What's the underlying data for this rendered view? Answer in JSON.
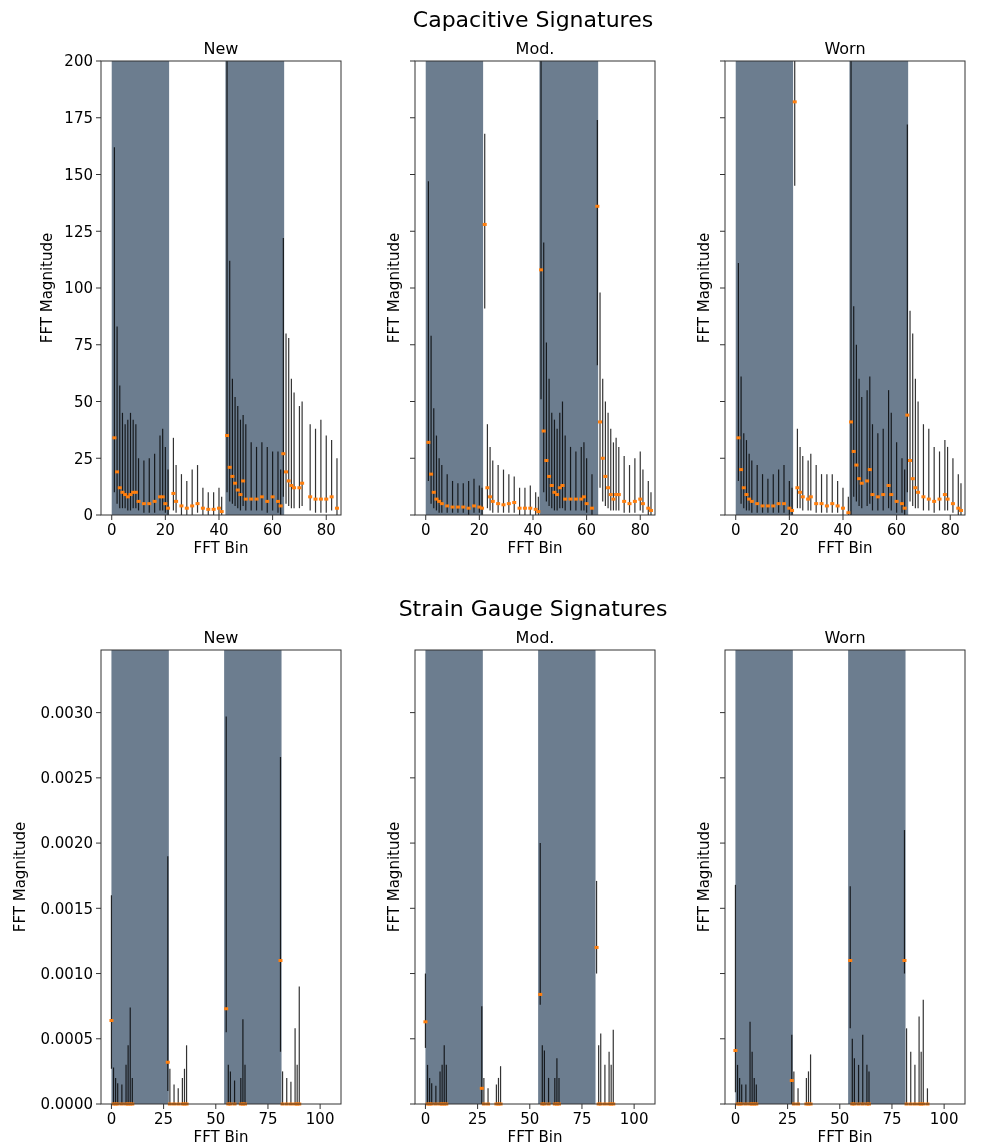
{
  "chart_data": [
    {
      "type": "scatter",
      "title": "New",
      "annotations": [
        "Capacitive Signatures"
      ],
      "xlabel": "FFT Bin",
      "ylabel": "FFT Magnitude",
      "xlim": [
        -4,
        85.5
      ],
      "ylim": [
        0,
        200
      ],
      "xticks": [
        0,
        20,
        40,
        60,
        80
      ],
      "yticks": [
        0,
        25,
        50,
        75,
        100,
        125,
        150,
        175,
        200
      ],
      "marker": "square",
      "bands": [
        {
          "axis": "x",
          "from": 0,
          "to": 21.4,
          "color": "#6c7d8f"
        },
        {
          "axis": "x",
          "from": 42.4,
          "to": 64.3,
          "color": "#6c7d8f"
        }
      ],
      "series": [
        {
          "color": "#ff7f0e",
          "x": [
            1,
            2,
            3,
            4,
            5,
            6,
            7,
            8,
            9,
            10,
            12,
            14,
            16,
            18,
            19,
            20,
            21,
            23,
            24,
            26,
            28,
            30,
            32,
            34,
            36,
            38,
            40,
            41,
            43,
            44,
            45,
            46,
            47,
            48,
            49,
            50,
            52,
            54,
            56,
            58,
            60,
            62,
            63,
            64,
            65,
            66,
            67,
            68,
            70,
            71,
            74,
            76,
            78,
            80,
            82,
            84
          ],
          "values": [
            34,
            19,
            12,
            10,
            9,
            8,
            9,
            10,
            10,
            6,
            5,
            5,
            6,
            8,
            8,
            5,
            3,
            9.5,
            6,
            4,
            3,
            4,
            5,
            3,
            2.5,
            2.5,
            3,
            1.5,
            35,
            21,
            17,
            14,
            11,
            9,
            15,
            7,
            7,
            7,
            8,
            6,
            8,
            6,
            4,
            27,
            19,
            15,
            13,
            12,
            12,
            14,
            8,
            7,
            7,
            7,
            8,
            3
          ],
          "errors": [
            [
              10,
              162
            ],
            [
              5,
              83
            ],
            [
              3,
              57
            ],
            [
              3,
              45
            ],
            [
              3,
              40
            ],
            [
              2,
              42
            ],
            [
              2,
              45
            ],
            [
              3,
              42
            ],
            [
              3,
              40
            ],
            [
              2,
              25
            ],
            [
              1,
              24
            ],
            [
              1,
              25
            ],
            [
              1,
              27
            ],
            [
              2,
              35
            ],
            [
              2,
              38
            ],
            [
              1,
              30
            ],
            [
              0,
              20
            ],
            [
              2,
              34
            ],
            [
              1,
              22
            ],
            [
              0,
              18
            ],
            [
              0,
              15
            ],
            [
              0,
              20
            ],
            [
              1,
              22
            ],
            [
              0,
              12
            ],
            [
              0,
              10
            ],
            [
              0,
              10
            ],
            [
              0,
              12
            ],
            [
              0,
              8
            ],
            [
              10,
              200
            ],
            [
              6,
              112
            ],
            [
              5,
              60
            ],
            [
              4,
              52
            ],
            [
              3,
              48
            ],
            [
              2,
              42
            ],
            [
              4,
              44
            ],
            [
              2,
              40
            ],
            [
              2,
              32
            ],
            [
              2,
              30
            ],
            [
              2,
              32
            ],
            [
              1,
              30
            ],
            [
              2,
              28
            ],
            [
              1,
              28
            ],
            [
              0,
              20
            ],
            [
              8,
              122
            ],
            [
              5,
              80
            ],
            [
              4,
              78
            ],
            [
              3,
              60
            ],
            [
              3,
              54
            ],
            [
              3,
              48
            ],
            [
              4,
              50
            ],
            [
              2,
              40
            ],
            [
              1,
              38
            ],
            [
              1,
              42
            ],
            [
              1,
              35
            ],
            [
              2,
              33
            ],
            [
              0,
              25
            ]
          ]
        }
      ]
    },
    {
      "type": "scatter",
      "title": "Mod.",
      "xlabel": "FFT Bin",
      "ylabel": "FFT Magnitude",
      "xlim": [
        -4,
        85.5
      ],
      "ylim": [
        0,
        200
      ],
      "xticks": [
        0,
        20,
        40,
        60,
        80
      ],
      "yticks": [
        0,
        25,
        50,
        75,
        100,
        125,
        150,
        175,
        200
      ],
      "tick_labels": "x",
      "marker": "square",
      "bands": [
        {
          "axis": "x",
          "from": 0,
          "to": 21.4,
          "color": "#6c7d8f"
        },
        {
          "axis": "x",
          "from": 42.4,
          "to": 64.3,
          "color": "#6c7d8f"
        }
      ],
      "series": [
        {
          "color": "#ff7f0e",
          "x": [
            1,
            2,
            3,
            4,
            5,
            6,
            8,
            10,
            12,
            14,
            16,
            18,
            20,
            21,
            22,
            23,
            24,
            25,
            27,
            29,
            31,
            33,
            35,
            37,
            39,
            41,
            42,
            43,
            44,
            45,
            46,
            47,
            48,
            49,
            50,
            51,
            52,
            54,
            56,
            58,
            59,
            60,
            62,
            64,
            65,
            66,
            67,
            68,
            69,
            70,
            71,
            72,
            74,
            76,
            78,
            80,
            81,
            83,
            84
          ],
          "values": [
            32,
            18,
            10,
            7,
            6,
            5,
            4,
            3.5,
            3.5,
            3.5,
            3,
            4,
            3.5,
            3,
            128,
            12,
            8,
            6,
            5,
            4.5,
            5,
            5.5,
            3,
            3,
            3,
            2.5,
            1.5,
            108,
            37,
            24,
            17,
            13,
            10,
            9,
            12,
            13,
            7,
            7,
            7,
            7,
            8,
            5,
            3,
            136,
            41,
            25,
            17,
            12,
            9,
            7,
            9,
            9,
            6,
            5,
            6,
            7,
            5,
            3,
            2
          ],
          "errors": [
            [
              15,
              147
            ],
            [
              5,
              79
            ],
            [
              3,
              47
            ],
            [
              2,
              35
            ],
            [
              1,
              25
            ],
            [
              1,
              22
            ],
            [
              1,
              18
            ],
            [
              1,
              15
            ],
            [
              1,
              14
            ],
            [
              1,
              14
            ],
            [
              0,
              15
            ],
            [
              1,
              16
            ],
            [
              1,
              13
            ],
            [
              0,
              12
            ],
            [
              91,
              168
            ],
            [
              3,
              40
            ],
            [
              2,
              30
            ],
            [
              1,
              24
            ],
            [
              1,
              22
            ],
            [
              1,
              20
            ],
            [
              1,
              18
            ],
            [
              1,
              17
            ],
            [
              0,
              12
            ],
            [
              0,
              12
            ],
            [
              0,
              13
            ],
            [
              0,
              10
            ],
            [
              0,
              8
            ],
            [
              51,
              200
            ],
            [
              10,
              120
            ],
            [
              6,
              76
            ],
            [
              4,
              60
            ],
            [
              3,
              45
            ],
            [
              2,
              42
            ],
            [
              2,
              38
            ],
            [
              3,
              45
            ],
            [
              3,
              50
            ],
            [
              2,
              35
            ],
            [
              2,
              30
            ],
            [
              2,
              28
            ],
            [
              2,
              30
            ],
            [
              2,
              32
            ],
            [
              1,
              25
            ],
            [
              0,
              18
            ],
            [
              66,
              174
            ],
            [
              12,
              98
            ],
            [
              6,
              60
            ],
            [
              4,
              50
            ],
            [
              3,
              45
            ],
            [
              2,
              38
            ],
            [
              2,
              32
            ],
            [
              2,
              34
            ],
            [
              2,
              30
            ],
            [
              1,
              26
            ],
            [
              1,
              22
            ],
            [
              1,
              25
            ],
            [
              2,
              28
            ],
            [
              1,
              20
            ],
            [
              0,
              15
            ],
            [
              0,
              10
            ]
          ]
        }
      ]
    },
    {
      "type": "scatter",
      "title": "Worn",
      "xlabel": "FFT Bin",
      "ylabel": "FFT Magnitude",
      "xlim": [
        -4,
        85.5
      ],
      "ylim": [
        0,
        200
      ],
      "xticks": [
        0,
        20,
        40,
        60,
        80
      ],
      "yticks": [
        0,
        25,
        50,
        75,
        100,
        125,
        150,
        175,
        200
      ],
      "tick_labels": "x",
      "marker": "square",
      "bands": [
        {
          "axis": "x",
          "from": 0,
          "to": 21.4,
          "color": "#6c7d8f"
        },
        {
          "axis": "x",
          "from": 42.4,
          "to": 64.3,
          "color": "#6c7d8f"
        }
      ],
      "series": [
        {
          "color": "#ff7f0e",
          "x": [
            1,
            2,
            3,
            4,
            5,
            6,
            8,
            10,
            12,
            14,
            16,
            18,
            20,
            21,
            22,
            23,
            24,
            25,
            27,
            28,
            30,
            32,
            34,
            36,
            38,
            40,
            42,
            43,
            44,
            45,
            46,
            47,
            49,
            50,
            51,
            53,
            55,
            57,
            58,
            60,
            62,
            63,
            64,
            65,
            66,
            67,
            68,
            70,
            72,
            74,
            76,
            78,
            79,
            81,
            83,
            84
          ],
          "values": [
            34,
            20,
            12,
            9,
            7,
            6,
            5,
            4,
            4,
            4,
            5,
            5,
            3,
            2,
            182,
            12,
            10,
            8,
            7,
            8,
            5,
            5,
            4,
            5,
            4,
            3,
            1,
            41,
            28,
            22,
            16,
            14,
            15,
            20,
            9,
            8,
            9,
            13,
            9,
            6,
            5,
            3,
            44,
            24,
            16,
            12,
            10,
            8,
            7,
            6,
            7,
            9,
            7,
            5,
            3,
            2
          ],
          "errors": [
            [
              15,
              111
            ],
            [
              5,
              61
            ],
            [
              3,
              36
            ],
            [
              2,
              33
            ],
            [
              2,
              27
            ],
            [
              1,
              24
            ],
            [
              1,
              22
            ],
            [
              1,
              18
            ],
            [
              1,
              16
            ],
            [
              1,
              18
            ],
            [
              1,
              20
            ],
            [
              1,
              22
            ],
            [
              0,
              15
            ],
            [
              0,
              12
            ],
            [
              145,
              200
            ],
            [
              3,
              38
            ],
            [
              3,
              30
            ],
            [
              2,
              26
            ],
            [
              2,
              24
            ],
            [
              2,
              27
            ],
            [
              1,
              22
            ],
            [
              1,
              18
            ],
            [
              1,
              18
            ],
            [
              1,
              18
            ],
            [
              1,
              15
            ],
            [
              0,
              12
            ],
            [
              0,
              8
            ],
            [
              0,
              200
            ],
            [
              8,
              92
            ],
            [
              6,
              75
            ],
            [
              4,
              60
            ],
            [
              3,
              52
            ],
            [
              4,
              55
            ],
            [
              5,
              61
            ],
            [
              2,
              40
            ],
            [
              2,
              36
            ],
            [
              2,
              38
            ],
            [
              3,
              55
            ],
            [
              2,
              45
            ],
            [
              1,
              32
            ],
            [
              1,
              25
            ],
            [
              0,
              20
            ],
            [
              10,
              172
            ],
            [
              6,
              90
            ],
            [
              4,
              80
            ],
            [
              3,
              60
            ],
            [
              3,
              50
            ],
            [
              2,
              40
            ],
            [
              2,
              38
            ],
            [
              1,
              30
            ],
            [
              2,
              28
            ],
            [
              2,
              33
            ],
            [
              2,
              30
            ],
            [
              1,
              25
            ],
            [
              0,
              18
            ],
            [
              0,
              14
            ]
          ]
        }
      ]
    },
    {
      "type": "scatter",
      "title": "New",
      "annotations": [
        "Strain Gauge Signatures"
      ],
      "xlabel": "FFT Bin",
      "ylabel": "FFT Magnitude",
      "xlim": [
        -5,
        110
      ],
      "ylim": [
        0,
        0.00348
      ],
      "xticks": [
        0,
        25,
        50,
        75,
        100
      ],
      "yticks": [
        {
          "value": 0,
          "label": "0.0000"
        },
        {
          "value": 0.0005,
          "label": "0.0005"
        },
        {
          "value": 0.001,
          "label": "0.0010"
        },
        {
          "value": 0.0015,
          "label": "0.0015"
        },
        {
          "value": 0.002,
          "label": "0.0020"
        },
        {
          "value": 0.0025,
          "label": "0.0025"
        },
        {
          "value": 0.003,
          "label": "0.0030"
        }
      ],
      "marker": "square",
      "bands": [
        {
          "axis": "x",
          "from": 0,
          "to": 27.5,
          "color": "#6c7d8f"
        },
        {
          "axis": "x",
          "from": 54,
          "to": 81.5,
          "color": "#6c7d8f"
        }
      ],
      "series": [
        {
          "color": "#ff7f0e",
          "x": [
            0,
            1,
            2,
            3,
            5,
            7,
            8,
            9,
            10,
            27,
            28,
            30,
            32,
            34,
            35,
            36,
            55,
            56,
            57,
            59,
            62,
            63,
            64,
            81,
            82,
            84,
            86,
            88,
            89,
            90
          ],
          "values": [
            0.00064,
            0,
            0,
            0,
            0,
            0,
            0,
            0,
            0,
            0.00032,
            0,
            0,
            0,
            0,
            0,
            0,
            0.00073,
            0,
            0,
            0,
            0,
            0,
            0,
            0.0011,
            0,
            0,
            0,
            0,
            0,
            0
          ],
          "errors": [
            [
              0.00027,
              0.0016
            ],
            [
              0,
              0.00028
            ],
            [
              0,
              0.0002
            ],
            [
              0,
              0.00016
            ],
            [
              0,
              0.00015
            ],
            [
              0,
              0.0003
            ],
            [
              0,
              0.00045
            ],
            [
              0,
              0.00074
            ],
            [
              0,
              0.0002
            ],
            [
              0.0001,
              0.0019
            ],
            [
              0,
              0.00027
            ],
            [
              0,
              0.00015
            ],
            [
              0,
              0.00012
            ],
            [
              0,
              0.0002
            ],
            [
              0,
              0.00027
            ],
            [
              0,
              0.00045
            ],
            [
              0.00055,
              0.00297
            ],
            [
              0,
              0.0003
            ],
            [
              0,
              0.00025
            ],
            [
              0,
              0.00018
            ],
            [
              0,
              0.0002
            ],
            [
              0,
              0.00065
            ],
            [
              0,
              0.0003
            ],
            [
              0.0004,
              0.00266
            ],
            [
              0,
              0.00025
            ],
            [
              0,
              0.0002
            ],
            [
              0,
              0.00017
            ],
            [
              0,
              0.00058
            ],
            [
              0,
              0.0003
            ],
            [
              0,
              0.0009
            ]
          ]
        }
      ]
    },
    {
      "type": "scatter",
      "title": "Mod.",
      "xlabel": "FFT Bin",
      "ylabel": "FFT Magnitude",
      "xlim": [
        -5,
        110
      ],
      "ylim": [
        0,
        0.00348
      ],
      "xticks": [
        0,
        25,
        50,
        75,
        100
      ],
      "yticks": [
        {
          "value": 0,
          "label": null
        },
        {
          "value": 0.0005,
          "label": null
        },
        {
          "value": 0.001,
          "label": null
        },
        {
          "value": 0.0015,
          "label": null
        },
        {
          "value": 0.002,
          "label": null
        },
        {
          "value": 0.0025,
          "label": null
        },
        {
          "value": 0.003,
          "label": null
        }
      ],
      "tick_labels": "x",
      "marker": "square",
      "bands": [
        {
          "axis": "x",
          "from": 0,
          "to": 27.5,
          "color": "#6c7d8f"
        },
        {
          "axis": "x",
          "from": 54,
          "to": 81.5,
          "color": "#6c7d8f"
        }
      ],
      "series": [
        {
          "color": "#ff7f0e",
          "x": [
            0,
            1,
            2,
            3,
            5,
            7,
            8,
            9,
            10,
            27,
            28,
            30,
            34,
            35,
            36,
            55,
            56,
            57,
            59,
            62,
            63,
            64,
            82,
            83,
            84,
            86,
            88,
            89,
            90
          ],
          "values": [
            0.00063,
            0,
            0,
            0,
            0,
            0,
            0,
            0,
            0,
            0.00012,
            0,
            0,
            0,
            0,
            0,
            0.00084,
            0,
            0,
            0,
            0,
            0,
            0,
            0.0012,
            0,
            0,
            0,
            0,
            0,
            0
          ],
          "errors": [
            [
              0.00043,
              0.001
            ],
            [
              0,
              0.0003
            ],
            [
              0,
              0.0002
            ],
            [
              0,
              0.00016
            ],
            [
              0,
              0.00014
            ],
            [
              0,
              0.00025
            ],
            [
              0,
              0.0003
            ],
            [
              0,
              0.00045
            ],
            [
              0,
              0.0003
            ],
            [
              0,
              0.00075
            ],
            [
              0,
              0.0002
            ],
            [
              0,
              0.00012
            ],
            [
              0,
              0.00015
            ],
            [
              0,
              0.0002
            ],
            [
              0,
              0.00029
            ],
            [
              0.00076,
              0.002
            ],
            [
              0,
              0.00045
            ],
            [
              0,
              0.00041
            ],
            [
              0,
              0.0002
            ],
            [
              0,
              0.0002
            ],
            [
              0,
              0.00035
            ],
            [
              0,
              0.0002
            ],
            [
              0.001,
              0.00171
            ],
            [
              0,
              0.00045
            ],
            [
              0,
              0.00054
            ],
            [
              0,
              0.0003
            ],
            [
              0,
              0.0004
            ],
            [
              0,
              0.0003
            ],
            [
              0,
              0.00057
            ]
          ]
        }
      ]
    },
    {
      "type": "scatter",
      "title": "Worn",
      "xlabel": "FFT Bin",
      "ylabel": "FFT Magnitude",
      "xlim": [
        -5,
        110
      ],
      "ylim": [
        0,
        0.00348
      ],
      "xticks": [
        0,
        25,
        50,
        75,
        100
      ],
      "yticks": [
        {
          "value": 0,
          "label": null
        },
        {
          "value": 0.0005,
          "label": null
        },
        {
          "value": 0.001,
          "label": null
        },
        {
          "value": 0.0015,
          "label": null
        },
        {
          "value": 0.002,
          "label": null
        },
        {
          "value": 0.0025,
          "label": null
        },
        {
          "value": 0.003,
          "label": null
        }
      ],
      "tick_labels": "x",
      "marker": "square",
      "bands": [
        {
          "axis": "x",
          "from": 0,
          "to": 27.5,
          "color": "#6c7d8f"
        },
        {
          "axis": "x",
          "from": 54,
          "to": 81.5,
          "color": "#6c7d8f"
        }
      ],
      "series": [
        {
          "color": "#ff7f0e",
          "x": [
            0,
            1,
            2,
            3,
            5,
            7,
            8,
            9,
            10,
            27,
            28,
            30,
            34,
            35,
            36,
            55,
            56,
            57,
            59,
            61,
            63,
            64,
            81,
            82,
            84,
            86,
            88,
            89,
            90,
            92
          ],
          "values": [
            0.00041,
            0,
            0,
            0,
            0,
            0,
            0,
            0,
            0,
            0.00018,
            0,
            0,
            0,
            0,
            0,
            0.0011,
            0,
            0,
            0,
            0,
            0,
            0,
            0.0011,
            0,
            0,
            0,
            0,
            0,
            0,
            0
          ],
          "errors": [
            [
              9e-05,
              0.00168
            ],
            [
              0,
              0.0003
            ],
            [
              0,
              0.0002
            ],
            [
              0,
              0.00015
            ],
            [
              0,
              0.00015
            ],
            [
              0,
              0.00063
            ],
            [
              0,
              0.0004
            ],
            [
              0,
              0.0002
            ],
            [
              0,
              0.00015
            ],
            [
              0,
              0.00053
            ],
            [
              0,
              0.00025
            ],
            [
              0,
              0.00012
            ],
            [
              0,
              0.0002
            ],
            [
              0,
              0.00025
            ],
            [
              0,
              0.00038
            ],
            [
              0.00058,
              0.00167
            ],
            [
              0,
              0.0005
            ],
            [
              0,
              0.00035
            ],
            [
              0,
              0.0003
            ],
            [
              0,
              0.00053
            ],
            [
              0,
              0.0003
            ],
            [
              0,
              0.00025
            ],
            [
              0.001,
              0.0021
            ],
            [
              0,
              0.00058
            ],
            [
              0,
              0.0004
            ],
            [
              0,
              0.0003
            ],
            [
              0,
              0.00067
            ],
            [
              0,
              0.0004
            ],
            [
              0,
              0.0008
            ],
            [
              0,
              0.00012
            ]
          ]
        }
      ]
    }
  ]
}
